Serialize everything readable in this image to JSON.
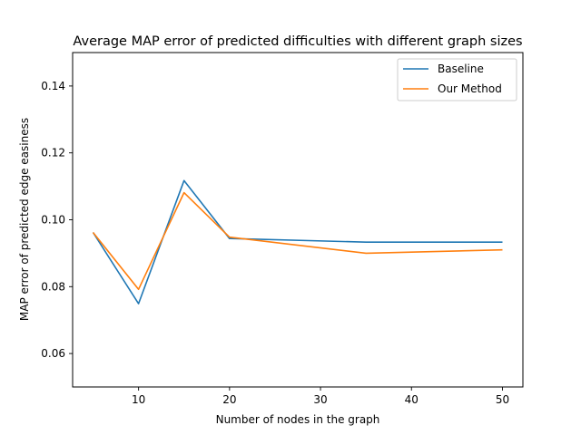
{
  "chart_data": {
    "type": "line",
    "title": "Average MAP error of predicted difficulties with different graph sizes",
    "xlabel": "Number of nodes in the graph",
    "ylabel": "MAP error of predicted edge easiness",
    "x": [
      5,
      10,
      15,
      20,
      35,
      50
    ],
    "xlim": [
      2.75,
      52.25
    ],
    "ylim": [
      0.05,
      0.15
    ],
    "xticks": [
      "10",
      "20",
      "30",
      "40",
      "50"
    ],
    "yticks": [
      "0.06",
      "0.08",
      "0.10",
      "0.12",
      "0.14"
    ],
    "grid": false,
    "legend_position": "top-right",
    "series": [
      {
        "name": "Baseline",
        "color": "#1f77b4",
        "values": [
          0.0962,
          0.0749,
          0.1117,
          0.0944,
          0.0933,
          0.0933
        ]
      },
      {
        "name": "Our Method",
        "color": "#ff7f0e",
        "values": [
          0.0962,
          0.0792,
          0.1081,
          0.0948,
          0.09,
          0.091
        ]
      }
    ]
  }
}
